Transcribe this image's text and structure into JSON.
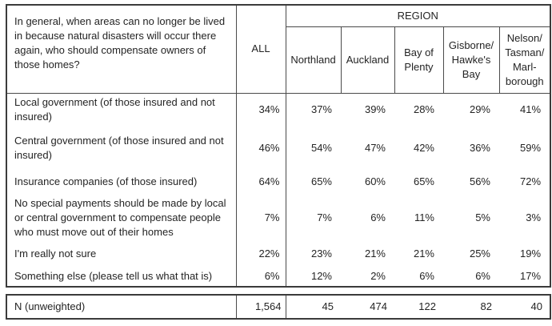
{
  "table": {
    "question": "In general, when areas can no longer be lived in because natural disasters will occur there again, who should compensate owners of those homes?",
    "all_label": "ALL",
    "region_label": "REGION",
    "regions": [
      "Northland",
      "Auckland",
      "Bay of\nPlenty",
      "Gisborne/\nHawke's\nBay",
      "Nelson/\nTasman/\nMarl-\nborough"
    ],
    "rows": [
      {
        "label": "Local government (of those insured and not insured)",
        "all": "34%",
        "values": [
          "37%",
          "39%",
          "28%",
          "29%",
          "41%"
        ]
      },
      {
        "label": "Central government (of those insured and not insured)",
        "all": "46%",
        "values": [
          "54%",
          "47%",
          "42%",
          "36%",
          "59%"
        ]
      },
      {
        "label": "Insurance companies (of those insured)",
        "all": "64%",
        "values": [
          "65%",
          "60%",
          "65%",
          "56%",
          "72%"
        ]
      },
      {
        "label": "No special payments should be made by local or central government to compensate people who must move out of their homes",
        "all": "7%",
        "values": [
          "7%",
          "6%",
          "11%",
          "5%",
          "3%"
        ]
      },
      {
        "label": "I'm really not sure",
        "all": "22%",
        "values": [
          "23%",
          "21%",
          "21%",
          "25%",
          "19%"
        ]
      },
      {
        "label": "Something else (please tell us what that is)",
        "all": "6%",
        "values": [
          "12%",
          "2%",
          "6%",
          "6%",
          "17%"
        ]
      }
    ],
    "n_row": {
      "label": "N (unweighted)",
      "all": "1,564",
      "values": [
        "45",
        "474",
        "122",
        "82",
        "40"
      ]
    }
  },
  "colors": {
    "border_outer": "#3b3b3b",
    "border_inner": "#4a4a4a",
    "text": "#242424",
    "background": "#ffffff"
  }
}
